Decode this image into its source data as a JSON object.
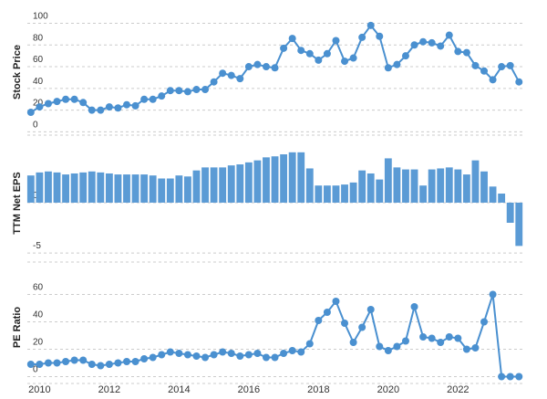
{
  "chart_data": [
    {
      "type": "line",
      "ylabel": "Stock Price",
      "color": "#4a90d0",
      "x": [
        2009.75,
        2010,
        2010.25,
        2010.5,
        2010.75,
        2011,
        2011.25,
        2011.5,
        2011.75,
        2012,
        2012.25,
        2012.5,
        2012.75,
        2013,
        2013.25,
        2013.5,
        2013.75,
        2014,
        2014.25,
        2014.5,
        2014.75,
        2015,
        2015.25,
        2015.5,
        2015.75,
        2016,
        2016.25,
        2016.5,
        2016.75,
        2017,
        2017.25,
        2017.5,
        2017.75,
        2018,
        2018.25,
        2018.5,
        2018.75,
        2019,
        2019.25,
        2019.5,
        2019.75,
        2020,
        2020.25,
        2020.5,
        2020.75,
        2021,
        2021.25,
        2021.5,
        2021.75,
        2022,
        2022.25,
        2022.5,
        2022.75,
        2023,
        2023.25,
        2023.5,
        2023.75
      ],
      "values": [
        18,
        23,
        26,
        28,
        30,
        30,
        27,
        20,
        20,
        23,
        22,
        25,
        24,
        30,
        30,
        33,
        38,
        38,
        37,
        39,
        39,
        46,
        54,
        52,
        49,
        60,
        62,
        60,
        59,
        77,
        86,
        75,
        72,
        66,
        72,
        84,
        65,
        68,
        87,
        98,
        88,
        59,
        62,
        70,
        80,
        83,
        82,
        79,
        89,
        74,
        73,
        61,
        56,
        48,
        60,
        61,
        46
      ],
      "xlim": [
        2009.65,
        2023.9
      ],
      "ylim": [
        -3,
        113
      ],
      "yticks": [
        0,
        20,
        40,
        60,
        80,
        100
      ],
      "grid": true
    },
    {
      "type": "bar",
      "ylabel": "TTM Net EPS",
      "color": "#5b9bd5",
      "x": [
        2009.75,
        2010,
        2010.25,
        2010.5,
        2010.75,
        2011,
        2011.25,
        2011.5,
        2011.75,
        2012,
        2012.25,
        2012.5,
        2012.75,
        2013,
        2013.25,
        2013.5,
        2013.75,
        2014,
        2014.25,
        2014.5,
        2014.75,
        2015,
        2015.25,
        2015.5,
        2015.75,
        2016,
        2016.25,
        2016.5,
        2016.75,
        2017,
        2017.25,
        2017.5,
        2017.75,
        2018,
        2018.25,
        2018.5,
        2018.75,
        2019,
        2019.25,
        2019.5,
        2019.75,
        2020,
        2020.25,
        2020.5,
        2020.75,
        2021,
        2021.25,
        2021.5,
        2021.75,
        2022,
        2022.25,
        2022.5,
        2022.75,
        2023,
        2023.25,
        2023.5,
        2023.75
      ],
      "values": [
        2.7,
        3.0,
        3.1,
        3.0,
        2.8,
        2.9,
        3.0,
        3.1,
        3.0,
        2.9,
        2.8,
        2.8,
        2.8,
        2.8,
        2.7,
        2.4,
        2.4,
        2.7,
        2.6,
        3.2,
        3.5,
        3.5,
        3.5,
        3.7,
        3.8,
        4.0,
        4.2,
        4.5,
        4.6,
        4.8,
        5.0,
        5.0,
        3.4,
        1.7,
        1.7,
        1.7,
        1.8,
        2.0,
        3.2,
        2.9,
        2.3,
        4.4,
        3.5,
        3.3,
        3.3,
        1.7,
        3.3,
        3.4,
        3.5,
        3.3,
        2.8,
        4.2,
        3.1,
        1.6,
        0.9,
        -2.0,
        -4.3
      ],
      "xlim": [
        2009.65,
        2023.9
      ],
      "ylim": [
        -5.9,
        5.8
      ],
      "yticks": [
        0,
        -5
      ],
      "grid": true
    },
    {
      "type": "line",
      "ylabel": "PE Ratio",
      "color": "#4a90d0",
      "x": [
        2009.75,
        2010,
        2010.25,
        2010.5,
        2010.75,
        2011,
        2011.25,
        2011.5,
        2011.75,
        2012,
        2012.25,
        2012.5,
        2012.75,
        2013,
        2013.25,
        2013.5,
        2013.75,
        2014,
        2014.25,
        2014.5,
        2014.75,
        2015,
        2015.25,
        2015.5,
        2015.75,
        2016,
        2016.25,
        2016.5,
        2016.75,
        2017,
        2017.25,
        2017.5,
        2017.75,
        2018,
        2018.25,
        2018.5,
        2018.75,
        2019,
        2019.25,
        2019.5,
        2019.75,
        2020,
        2020.25,
        2020.5,
        2020.75,
        2021,
        2021.25,
        2021.5,
        2021.75,
        2022,
        2022.25,
        2022.5,
        2022.75,
        2023,
        2023.25,
        2023.5,
        2023.75
      ],
      "values": [
        9,
        9,
        10,
        10,
        11,
        12,
        12,
        9,
        8,
        9,
        10,
        11,
        11,
        13,
        14,
        16,
        18,
        17,
        16,
        15,
        14,
        16,
        18,
        17,
        15,
        16,
        17,
        14,
        14,
        17,
        19,
        18,
        24,
        41,
        47,
        55,
        39,
        25,
        36,
        49,
        22,
        19,
        22,
        26,
        51,
        29,
        28,
        25,
        29,
        28,
        20,
        21,
        40,
        60,
        0,
        0,
        0
      ],
      "xlim": [
        2009.65,
        2023.9
      ],
      "ylim": [
        -5,
        77
      ],
      "yticks": [
        0,
        20,
        40,
        60
      ],
      "grid": true,
      "xticks": [
        2010,
        2012,
        2014,
        2016,
        2018,
        2020,
        2022
      ]
    }
  ]
}
